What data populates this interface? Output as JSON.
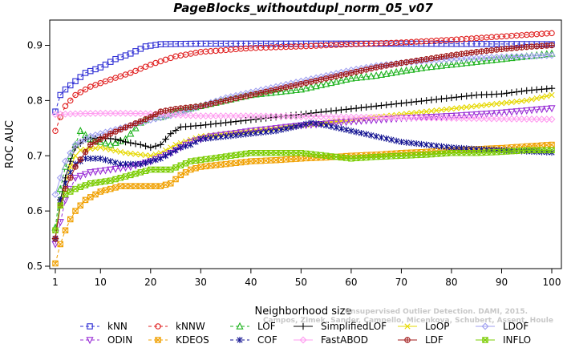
{
  "chart_data": {
    "type": "line",
    "title": "PageBlocks_withoutdupl_norm_05_v07",
    "xlabel": "Neighborhood size",
    "ylabel": "ROC AUC",
    "xlim": [
      1,
      100
    ],
    "ylim": [
      0.5,
      0.95
    ],
    "x_ticks": [
      1,
      10,
      20,
      30,
      40,
      50,
      60,
      70,
      80,
      90,
      100
    ],
    "y_ticks": [
      0.5,
      0.6,
      0.7,
      0.8,
      0.9
    ],
    "x_tick_labels": [
      "1",
      "10",
      "20",
      "30",
      "40",
      "50",
      "60",
      "70",
      "80",
      "90",
      "100"
    ],
    "y_tick_labels": [
      "0.5",
      "0.6",
      "0.7",
      "0.8",
      "0.9"
    ],
    "grid": false,
    "legend_position": "bottom",
    "watermark_lines": [
      "Unsupervised Outlier Detection. DAMI, 2015.",
      "Campos, Zimek, Sander, Campello, Micenkova, Schubert, Assent, Houle"
    ],
    "series": [
      {
        "name": "kNN",
        "color": "#2d2dd4",
        "marker": "square",
        "dash": "4,3",
        "points": [
          [
            1,
            0.78
          ],
          [
            2,
            0.81
          ],
          [
            3,
            0.82
          ],
          [
            5,
            0.835
          ],
          [
            7,
            0.85
          ],
          [
            10,
            0.86
          ],
          [
            13,
            0.875
          ],
          [
            16,
            0.885
          ],
          [
            19,
            0.898
          ],
          [
            22,
            0.902
          ],
          [
            30,
            0.903
          ],
          [
            50,
            0.903
          ],
          [
            70,
            0.903
          ],
          [
            100,
            0.902
          ]
        ]
      },
      {
        "name": "kNNW",
        "color": "#e02020",
        "marker": "circle",
        "dash": "4,3",
        "points": [
          [
            1,
            0.745
          ],
          [
            2,
            0.77
          ],
          [
            3,
            0.79
          ],
          [
            5,
            0.81
          ],
          [
            8,
            0.825
          ],
          [
            12,
            0.838
          ],
          [
            16,
            0.85
          ],
          [
            20,
            0.865
          ],
          [
            25,
            0.88
          ],
          [
            30,
            0.888
          ],
          [
            40,
            0.895
          ],
          [
            50,
            0.898
          ],
          [
            60,
            0.902
          ],
          [
            70,
            0.905
          ],
          [
            80,
            0.91
          ],
          [
            90,
            0.916
          ],
          [
            100,
            0.922
          ]
        ]
      },
      {
        "name": "LOF",
        "color": "#1fb31f",
        "marker": "triangle-up",
        "dash": "4,3",
        "points": [
          [
            1,
            0.57
          ],
          [
            2,
            0.64
          ],
          [
            3,
            0.68
          ],
          [
            5,
            0.72
          ],
          [
            6,
            0.745
          ],
          [
            8,
            0.73
          ],
          [
            10,
            0.725
          ],
          [
            12,
            0.72
          ],
          [
            15,
            0.73
          ],
          [
            18,
            0.76
          ],
          [
            20,
            0.77
          ],
          [
            22,
            0.77
          ],
          [
            25,
            0.78
          ],
          [
            30,
            0.79
          ],
          [
            35,
            0.8
          ],
          [
            40,
            0.81
          ],
          [
            45,
            0.815
          ],
          [
            50,
            0.82
          ],
          [
            55,
            0.83
          ],
          [
            60,
            0.84
          ],
          [
            65,
            0.845
          ],
          [
            70,
            0.853
          ],
          [
            75,
            0.86
          ],
          [
            80,
            0.865
          ],
          [
            85,
            0.87
          ],
          [
            90,
            0.875
          ],
          [
            95,
            0.88
          ],
          [
            100,
            0.885
          ]
        ]
      },
      {
        "name": "SimplifiedLOF",
        "color": "#000000",
        "marker": "plus",
        "dash": "",
        "points": [
          [
            1,
            0.55
          ],
          [
            2,
            0.62
          ],
          [
            3,
            0.66
          ],
          [
            4,
            0.69
          ],
          [
            5,
            0.715
          ],
          [
            7,
            0.73
          ],
          [
            10,
            0.733
          ],
          [
            13,
            0.73
          ],
          [
            15,
            0.725
          ],
          [
            18,
            0.72
          ],
          [
            20,
            0.715
          ],
          [
            22,
            0.72
          ],
          [
            24,
            0.74
          ],
          [
            26,
            0.752
          ],
          [
            30,
            0.755
          ],
          [
            35,
            0.76
          ],
          [
            40,
            0.765
          ],
          [
            45,
            0.77
          ],
          [
            50,
            0.775
          ],
          [
            55,
            0.78
          ],
          [
            60,
            0.785
          ],
          [
            65,
            0.79
          ],
          [
            70,
            0.795
          ],
          [
            75,
            0.8
          ],
          [
            80,
            0.805
          ],
          [
            85,
            0.81
          ],
          [
            90,
            0.812
          ],
          [
            95,
            0.818
          ],
          [
            100,
            0.822
          ]
        ]
      },
      {
        "name": "LoOP",
        "color": "#e6d800",
        "marker": "x",
        "dash": "",
        "points": [
          [
            1,
            0.55
          ],
          [
            2,
            0.61
          ],
          [
            3,
            0.65
          ],
          [
            4,
            0.68
          ],
          [
            5,
            0.7
          ],
          [
            6,
            0.71
          ],
          [
            10,
            0.715
          ],
          [
            15,
            0.705
          ],
          [
            20,
            0.7
          ],
          [
            22,
            0.705
          ],
          [
            25,
            0.72
          ],
          [
            30,
            0.735
          ],
          [
            35,
            0.74
          ],
          [
            40,
            0.745
          ],
          [
            45,
            0.75
          ],
          [
            50,
            0.755
          ],
          [
            55,
            0.76
          ],
          [
            60,
            0.765
          ],
          [
            65,
            0.77
          ],
          [
            70,
            0.775
          ],
          [
            75,
            0.78
          ],
          [
            80,
            0.785
          ],
          [
            85,
            0.79
          ],
          [
            90,
            0.795
          ],
          [
            95,
            0.8
          ],
          [
            100,
            0.81
          ]
        ]
      },
      {
        "name": "LDOF",
        "color": "#a0a0f0",
        "marker": "diamond",
        "dash": "",
        "points": [
          [
            1,
            0.63
          ],
          [
            2,
            0.66
          ],
          [
            3,
            0.69
          ],
          [
            5,
            0.72
          ],
          [
            8,
            0.735
          ],
          [
            12,
            0.745
          ],
          [
            16,
            0.755
          ],
          [
            20,
            0.765
          ],
          [
            25,
            0.775
          ],
          [
            30,
            0.79
          ],
          [
            35,
            0.805
          ],
          [
            40,
            0.815
          ],
          [
            45,
            0.825
          ],
          [
            50,
            0.835
          ],
          [
            55,
            0.845
          ],
          [
            60,
            0.855
          ],
          [
            65,
            0.863
          ],
          [
            70,
            0.868
          ],
          [
            75,
            0.872
          ],
          [
            80,
            0.875
          ],
          [
            85,
            0.877
          ],
          [
            90,
            0.879
          ],
          [
            95,
            0.88
          ],
          [
            100,
            0.882
          ]
        ]
      },
      {
        "name": "ODIN",
        "color": "#9a2fd6",
        "marker": "triangle-down",
        "dash": "4,3",
        "points": [
          [
            1,
            0.54
          ],
          [
            2,
            0.58
          ],
          [
            3,
            0.62
          ],
          [
            5,
            0.66
          ],
          [
            8,
            0.67
          ],
          [
            12,
            0.675
          ],
          [
            16,
            0.68
          ],
          [
            20,
            0.69
          ],
          [
            24,
            0.705
          ],
          [
            28,
            0.725
          ],
          [
            32,
            0.735
          ],
          [
            36,
            0.74
          ],
          [
            40,
            0.745
          ],
          [
            45,
            0.75
          ],
          [
            50,
            0.755
          ],
          [
            55,
            0.758
          ],
          [
            60,
            0.762
          ],
          [
            65,
            0.765
          ],
          [
            70,
            0.768
          ],
          [
            75,
            0.77
          ],
          [
            80,
            0.772
          ],
          [
            85,
            0.775
          ],
          [
            90,
            0.778
          ],
          [
            95,
            0.782
          ],
          [
            100,
            0.786
          ]
        ]
      },
      {
        "name": "KDEOS",
        "color": "#f0a000",
        "marker": "square-x",
        "dash": "4,3",
        "points": [
          [
            1,
            0.505
          ],
          [
            2,
            0.54
          ],
          [
            3,
            0.565
          ],
          [
            4,
            0.585
          ],
          [
            5,
            0.6
          ],
          [
            7,
            0.62
          ],
          [
            10,
            0.635
          ],
          [
            14,
            0.645
          ],
          [
            18,
            0.645
          ],
          [
            22,
            0.645
          ],
          [
            24,
            0.65
          ],
          [
            26,
            0.665
          ],
          [
            28,
            0.675
          ],
          [
            30,
            0.68
          ],
          [
            35,
            0.685
          ],
          [
            40,
            0.69
          ],
          [
            45,
            0.692
          ],
          [
            50,
            0.695
          ],
          [
            55,
            0.697
          ],
          [
            60,
            0.7
          ],
          [
            65,
            0.702
          ],
          [
            70,
            0.705
          ],
          [
            75,
            0.707
          ],
          [
            80,
            0.71
          ],
          [
            85,
            0.712
          ],
          [
            90,
            0.714
          ],
          [
            95,
            0.717
          ],
          [
            100,
            0.72
          ]
        ]
      },
      {
        "name": "COF",
        "color": "#101090",
        "marker": "asterisk",
        "dash": "4,3",
        "points": [
          [
            1,
            0.55
          ],
          [
            2,
            0.62
          ],
          [
            3,
            0.65
          ],
          [
            4,
            0.67
          ],
          [
            5,
            0.685
          ],
          [
            7,
            0.695
          ],
          [
            10,
            0.695
          ],
          [
            14,
            0.685
          ],
          [
            18,
            0.685
          ],
          [
            20,
            0.69
          ],
          [
            22,
            0.695
          ],
          [
            24,
            0.705
          ],
          [
            26,
            0.715
          ],
          [
            28,
            0.72
          ],
          [
            30,
            0.73
          ],
          [
            35,
            0.735
          ],
          [
            40,
            0.74
          ],
          [
            45,
            0.745
          ],
          [
            50,
            0.755
          ],
          [
            52,
            0.76
          ],
          [
            55,
            0.755
          ],
          [
            60,
            0.745
          ],
          [
            65,
            0.735
          ],
          [
            70,
            0.725
          ],
          [
            75,
            0.72
          ],
          [
            80,
            0.715
          ],
          [
            85,
            0.712
          ],
          [
            90,
            0.71
          ],
          [
            95,
            0.708
          ],
          [
            100,
            0.706
          ]
        ]
      },
      {
        "name": "FastABOD",
        "color": "#ff9cf0",
        "marker": "diamond",
        "dash": "",
        "points": [
          [
            1,
            0.775
          ],
          [
            5,
            0.776
          ],
          [
            10,
            0.777
          ],
          [
            15,
            0.777
          ],
          [
            20,
            0.776
          ],
          [
            25,
            0.774
          ],
          [
            30,
            0.772
          ],
          [
            40,
            0.772
          ],
          [
            50,
            0.771
          ],
          [
            60,
            0.77
          ],
          [
            70,
            0.769
          ],
          [
            80,
            0.768
          ],
          [
            90,
            0.767
          ],
          [
            100,
            0.766
          ]
        ]
      },
      {
        "name": "LDF",
        "color": "#a01818",
        "marker": "circle-plus",
        "dash": "",
        "points": [
          [
            1,
            0.55
          ],
          [
            2,
            0.61
          ],
          [
            3,
            0.64
          ],
          [
            5,
            0.68
          ],
          [
            8,
            0.72
          ],
          [
            12,
            0.74
          ],
          [
            16,
            0.755
          ],
          [
            20,
            0.77
          ],
          [
            22,
            0.78
          ],
          [
            25,
            0.785
          ],
          [
            30,
            0.79
          ],
          [
            35,
            0.8
          ],
          [
            40,
            0.81
          ],
          [
            45,
            0.82
          ],
          [
            50,
            0.83
          ],
          [
            55,
            0.84
          ],
          [
            60,
            0.85
          ],
          [
            65,
            0.86
          ],
          [
            70,
            0.868
          ],
          [
            75,
            0.875
          ],
          [
            80,
            0.882
          ],
          [
            85,
            0.888
          ],
          [
            90,
            0.893
          ],
          [
            95,
            0.897
          ],
          [
            100,
            0.9
          ]
        ]
      },
      {
        "name": "INFLO",
        "color": "#7acc00",
        "marker": "hourglass",
        "dash": "",
        "points": [
          [
            1,
            0.565
          ],
          [
            2,
            0.61
          ],
          [
            3,
            0.63
          ],
          [
            5,
            0.64
          ],
          [
            8,
            0.65
          ],
          [
            12,
            0.655
          ],
          [
            16,
            0.665
          ],
          [
            20,
            0.675
          ],
          [
            24,
            0.675
          ],
          [
            28,
            0.69
          ],
          [
            32,
            0.695
          ],
          [
            36,
            0.7
          ],
          [
            40,
            0.705
          ],
          [
            45,
            0.705
          ],
          [
            50,
            0.705
          ],
          [
            55,
            0.7
          ],
          [
            60,
            0.695
          ],
          [
            65,
            0.698
          ],
          [
            70,
            0.7
          ],
          [
            75,
            0.702
          ],
          [
            80,
            0.705
          ],
          [
            85,
            0.705
          ],
          [
            90,
            0.707
          ],
          [
            95,
            0.71
          ],
          [
            100,
            0.71
          ]
        ]
      }
    ]
  }
}
